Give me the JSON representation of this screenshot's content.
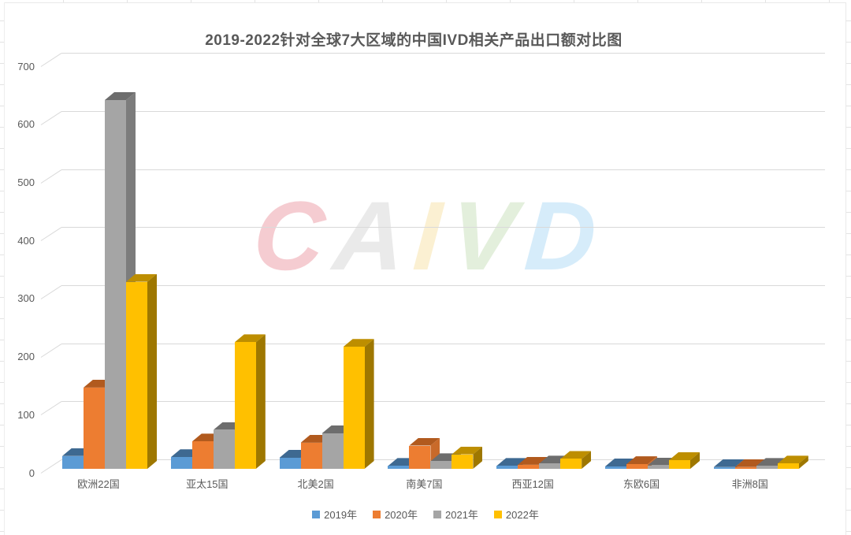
{
  "chart_data": {
    "type": "bar",
    "style": "3d-clustered-column",
    "title": "2019-2022针对全球7大区域的中国IVD相关产品出口额对比图",
    "xlabel": "",
    "ylabel": "",
    "ylim": [
      0,
      700
    ],
    "y_ticks": [
      0,
      100,
      200,
      300,
      400,
      500,
      600,
      700
    ],
    "grid": true,
    "legend_position": "bottom",
    "categories": [
      "欧洲22国",
      "亚太15国",
      "北美2国",
      "南美7国",
      "西亚12国",
      "东欧6国",
      "非洲8国"
    ],
    "series": [
      {
        "name": "2019年",
        "color": "#5B9BD5",
        "top_color": "#3E6991",
        "side_color": "#477AA6",
        "values": [
          22,
          20,
          19,
          5,
          5,
          4,
          3
        ]
      },
      {
        "name": "2020年",
        "color": "#ED7D31",
        "top_color": "#B15A1E",
        "side_color": "#C96A2A",
        "values": [
          140,
          47,
          45,
          40,
          7,
          8,
          3
        ]
      },
      {
        "name": "2021年",
        "color": "#A5A5A5",
        "top_color": "#6D6D6D",
        "side_color": "#7C7C7C",
        "values": [
          635,
          67,
          61,
          13,
          9,
          6,
          5
        ]
      },
      {
        "name": "2022年",
        "color": "#FFC000",
        "top_color": "#BD8E00",
        "side_color": "#9E7700",
        "values": [
          322,
          218,
          210,
          25,
          17,
          15,
          9
        ]
      }
    ]
  },
  "watermark": {
    "text": "CAIVD",
    "letters": [
      {
        "char": "C",
        "color": "#f5ccd1"
      },
      {
        "char": "A",
        "color": "#eaeaea"
      },
      {
        "char": "I",
        "color": "#fbf0d2"
      },
      {
        "char": "V",
        "color": "#e3efdc"
      },
      {
        "char": "D",
        "color": "#d6ecfa"
      }
    ]
  },
  "axis_colors": {
    "gridline": "#d9d9d9",
    "text": "#595959"
  }
}
